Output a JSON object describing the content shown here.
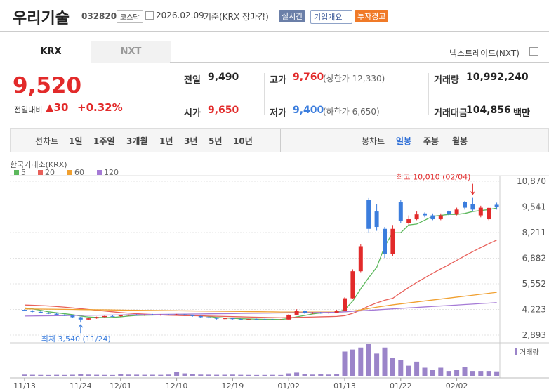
{
  "header": {
    "name": "우리기술",
    "code": "032820",
    "market": "코스닥",
    "date": "2026.02.09",
    "basis": "기준(KRX 장마감)",
    "realtime": "실시간",
    "overview": "기업개요",
    "warning": "투자경고"
  },
  "tabs": [
    "KRX",
    "NXT"
  ],
  "nxt_option": "넥스트레이드(NXT)",
  "quote": {
    "price": "9,520",
    "change_label": "전일대비",
    "change": "30",
    "change_pct": "+0.32%",
    "rows": [
      [
        {
          "label": "전일",
          "value": "9,490"
        },
        {
          "label": "고가",
          "value": "9,760",
          "note": "(상한가 12,330)"
        },
        {
          "label": "거래량",
          "value": "10,992,240"
        }
      ],
      [
        {
          "label": "시가",
          "value": "9,650"
        },
        {
          "label": "저가",
          "value": "9,400",
          "note": "(하한가 6,650)"
        },
        {
          "label": "거래대금",
          "value": "104,856",
          "unit": "백만"
        }
      ]
    ]
  },
  "toolbar": {
    "line_chart": "선차트",
    "periods": [
      "1일",
      "1주일",
      "3개월",
      "1년",
      "3년",
      "5년",
      "10년"
    ],
    "candle_chart": "봉차트",
    "candle_periods": [
      "일봉",
      "주봉",
      "월봉"
    ]
  },
  "chart_data": {
    "type": "candlestick",
    "source": "한국거래소(KRX)",
    "categories": [
      "11/13",
      null,
      null,
      null,
      null,
      null,
      null,
      "11/24",
      null,
      null,
      null,
      null,
      "12/01",
      null,
      null,
      null,
      null,
      null,
      null,
      "12/10",
      null,
      null,
      null,
      null,
      null,
      null,
      "12/19",
      null,
      null,
      null,
      null,
      null,
      null,
      "01/02",
      null,
      null,
      null,
      null,
      null,
      null,
      "01/13",
      null,
      null,
      null,
      null,
      null,
      null,
      "01/22",
      null,
      null,
      null,
      null,
      null,
      null,
      "02/02",
      null,
      null,
      null,
      null,
      null
    ],
    "open": [
      4200,
      4150,
      4100,
      4050,
      4000,
      3950,
      3900,
      3820,
      3700,
      3760,
      3830,
      3880,
      3870,
      3910,
      3940,
      3920,
      3950,
      3930,
      3950,
      3940,
      3960,
      3920,
      3880,
      3820,
      3790,
      3740,
      3760,
      3720,
      3700,
      3720,
      3710,
      3700,
      3690,
      3700,
      3950,
      4150,
      4030,
      4050,
      4020,
      4060,
      4150,
      4800,
      6200,
      9900,
      9300,
      8400,
      7100,
      9800,
      8700,
      8900,
      9200,
      9100,
      8900,
      9300,
      9150,
      9800,
      9700,
      9100,
      8900,
      9650
    ],
    "high": [
      4230,
      4180,
      4120,
      4080,
      4030,
      3980,
      3920,
      3840,
      3780,
      3850,
      3900,
      3920,
      3930,
      3960,
      3980,
      3960,
      3990,
      3970,
      3980,
      3990,
      3990,
      3940,
      3900,
      3850,
      3820,
      3780,
      3790,
      3750,
      3740,
      3750,
      3740,
      3730,
      3720,
      3980,
      4230,
      4170,
      4080,
      4090,
      4080,
      4200,
      4850,
      6300,
      7600,
      10000,
      9700,
      8500,
      8600,
      9900,
      9100,
      9300,
      9250,
      9200,
      9200,
      9350,
      9500,
      9850,
      10010,
      9600,
      9500,
      9760
    ],
    "low": [
      4130,
      4080,
      4030,
      3980,
      3930,
      3880,
      3800,
      3540,
      3680,
      3740,
      3800,
      3850,
      3850,
      3890,
      3900,
      3890,
      3910,
      3900,
      3920,
      3910,
      3900,
      3850,
      3800,
      3760,
      3700,
      3720,
      3700,
      3680,
      3680,
      3690,
      3680,
      3670,
      3660,
      3690,
      3940,
      4000,
      3990,
      4000,
      4000,
      4040,
      4130,
      4780,
      6150,
      8200,
      8300,
      6900,
      7000,
      8700,
      8600,
      8850,
      9000,
      8850,
      8850,
      9100,
      9100,
      9400,
      9300,
      9000,
      8850,
      9400
    ],
    "close": [
      4150,
      4100,
      4050,
      4000,
      3950,
      3900,
      3820,
      3700,
      3760,
      3830,
      3880,
      3870,
      3910,
      3940,
      3920,
      3950,
      3930,
      3950,
      3940,
      3960,
      3920,
      3880,
      3820,
      3790,
      3740,
      3760,
      3720,
      3700,
      3720,
      3710,
      3700,
      3690,
      3700,
      3950,
      4150,
      4030,
      4050,
      4020,
      4060,
      4150,
      4800,
      6200,
      7500,
      8400,
      8500,
      7100,
      8400,
      8800,
      8900,
      9150,
      9100,
      8900,
      9100,
      9150,
      9400,
      9500,
      9400,
      9500,
      9490,
      9520
    ],
    "volume": [
      3000000,
      2500000,
      2200000,
      2000000,
      2400000,
      2100000,
      2600000,
      4000000,
      3000000,
      2500000,
      2200000,
      2000000,
      3500000,
      3000000,
      2800000,
      2500000,
      2600000,
      2400000,
      3000000,
      10000000,
      6000000,
      4000000,
      3000000,
      2800000,
      2500000,
      2600000,
      3000000,
      2400000,
      2200000,
      2000000,
      2100000,
      2300000,
      2000000,
      6000000,
      8000000,
      4000000,
      3000000,
      3500000,
      3000000,
      5000000,
      60000000,
      65000000,
      70000000,
      80000000,
      55000000,
      70000000,
      45000000,
      40000000,
      25000000,
      35000000,
      20000000,
      15000000,
      20000000,
      12000000,
      15000000,
      22000000,
      12000000,
      12000000,
      12000000,
      10992240
    ],
    "volume_label": "거래량",
    "series": [
      {
        "name": "5",
        "color": "#5cb85c",
        "values": [
          4300,
          4250,
          4180,
          4100,
          4050,
          4000,
          3950,
          3880,
          3830,
          3810,
          3800,
          3810,
          3840,
          3880,
          3910,
          3920,
          3930,
          3940,
          3940,
          3950,
          3940,
          3930,
          3900,
          3860,
          3810,
          3780,
          3760,
          3740,
          3730,
          3720,
          3710,
          3710,
          3700,
          3750,
          3840,
          3910,
          3990,
          4040,
          4060,
          4070,
          4210,
          4650,
          5290,
          5870,
          6400,
          7500,
          8200,
          8200,
          8600,
          8650,
          8850,
          9050,
          9100,
          9150,
          9150,
          9200,
          9300,
          9350,
          9400,
          9480
        ]
      },
      {
        "name": "20",
        "color": "#e8605a",
        "values": [
          4450,
          4440,
          4420,
          4400,
          4370,
          4340,
          4300,
          4260,
          4220,
          4180,
          4140,
          4100,
          4060,
          4030,
          4000,
          3980,
          3960,
          3940,
          3920,
          3910,
          3900,
          3900,
          3890,
          3880,
          3870,
          3860,
          3850,
          3840,
          3830,
          3820,
          3810,
          3800,
          3790,
          3800,
          3810,
          3820,
          3830,
          3840,
          3850,
          3860,
          3900,
          4020,
          4190,
          4400,
          4560,
          4700,
          4800,
          5090,
          5360,
          5620,
          5860,
          6100,
          6320,
          6540,
          6770,
          7000,
          7220,
          7430,
          7630,
          7820
        ]
      },
      {
        "name": "60",
        "color": "#f0a030",
        "values": [
          4250,
          4245,
          4240,
          4235,
          4230,
          4225,
          4220,
          4215,
          4210,
          4205,
          4200,
          4195,
          4190,
          4185,
          4180,
          4175,
          4170,
          4165,
          4160,
          4155,
          4150,
          4145,
          4140,
          4135,
          4130,
          4125,
          4120,
          4115,
          4110,
          4105,
          4100,
          4095,
          4090,
          4090,
          4090,
          4090,
          4090,
          4090,
          4090,
          4090,
          4100,
          4140,
          4200,
          4270,
          4340,
          4400,
          4460,
          4510,
          4560,
          4610,
          4660,
          4710,
          4760,
          4810,
          4860,
          4910,
          4960,
          5010,
          5060,
          5110
        ]
      },
      {
        "name": "120",
        "color": "#a57ad6",
        "values": [
          3880,
          3885,
          3890,
          3895,
          3900,
          3905,
          3910,
          3915,
          3920,
          3925,
          3930,
          3935,
          3940,
          3945,
          3950,
          3955,
          3960,
          3965,
          3970,
          3975,
          3980,
          3985,
          3990,
          3995,
          4000,
          4005,
          4010,
          4015,
          4020,
          4025,
          4030,
          4035,
          4040,
          4045,
          4050,
          4055,
          4060,
          4065,
          4070,
          4075,
          4100,
          4125,
          4150,
          4175,
          4200,
          4225,
          4250,
          4275,
          4300,
          4325,
          4350,
          4375,
          4400,
          4425,
          4450,
          4475,
          4500,
          4525,
          4550,
          4575
        ]
      }
    ],
    "up_color": "#e22a2a",
    "down_color": "#3b7ddd",
    "ylim": [
      2600,
      11160
    ],
    "yticks": [
      {
        "value": 2893,
        "label": "2,893"
      },
      {
        "value": 4223,
        "label": "4,223"
      },
      {
        "value": 5552,
        "label": "5,552"
      },
      {
        "value": 6882,
        "label": "6,882"
      },
      {
        "value": 8211,
        "label": "8,211"
      },
      {
        "value": 9541,
        "label": "9,541"
      },
      {
        "value": 10870,
        "label": "10,870"
      }
    ],
    "grid": true,
    "annotations": [
      {
        "text": "최고 10,010 (02/04)",
        "at": 56,
        "color": "#e22a2a",
        "kind": "high"
      },
      {
        "text": "최저 3,540 (11/24)",
        "at": 7,
        "color": "#3b7ddd",
        "kind": "low"
      }
    ]
  }
}
